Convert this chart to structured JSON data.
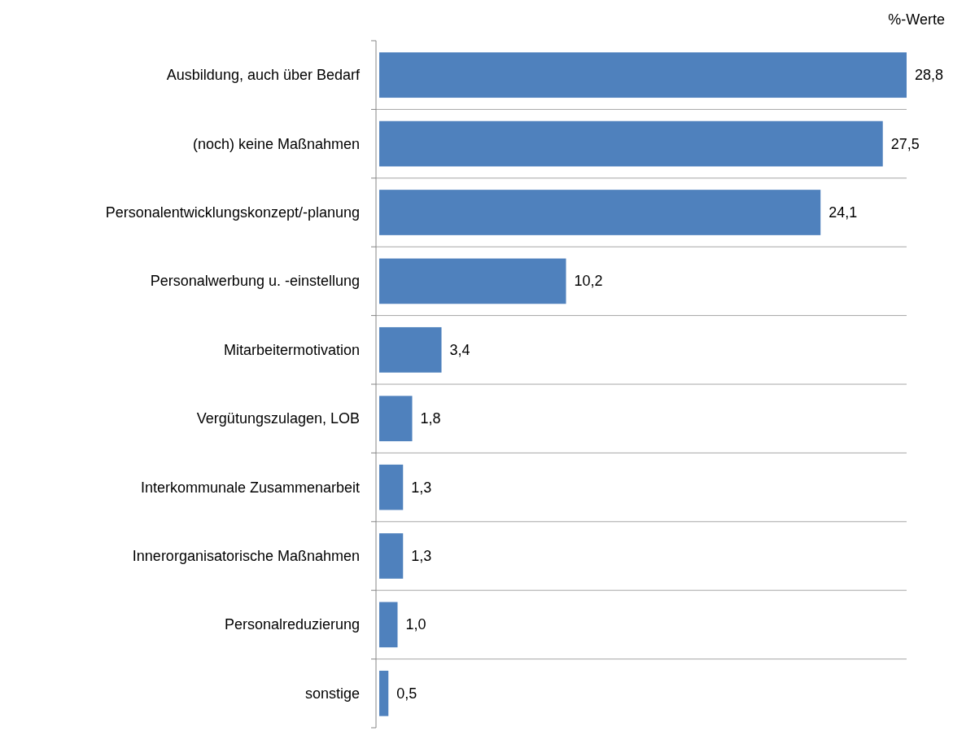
{
  "chart_data": {
    "type": "bar",
    "orientation": "horizontal",
    "xlabel": "%-Werte",
    "categories": [
      "Ausbildung, auch über Bedarf",
      "(noch) keine Maßnahmen",
      "Personalentwicklungskonzept/-planung",
      "Personalwerbung u. -einstellung",
      "Mitarbeitermotivation",
      "Vergütungszulagen, LOB",
      "Interkommunale Zusammenarbeit",
      "Innerorganisatorische Maßnahmen",
      "Personalreduzierung",
      "sonstige"
    ],
    "values": [
      28.8,
      27.5,
      24.1,
      10.2,
      3.4,
      1.8,
      1.3,
      1.3,
      1.0,
      0.5
    ],
    "value_labels": [
      "28,8",
      "27,5",
      "24,1",
      "10,2",
      "3,4",
      "1,8",
      "1,3",
      "1,3",
      "1,0",
      "0,5"
    ],
    "color": "#4f81bd",
    "grid": "y"
  }
}
